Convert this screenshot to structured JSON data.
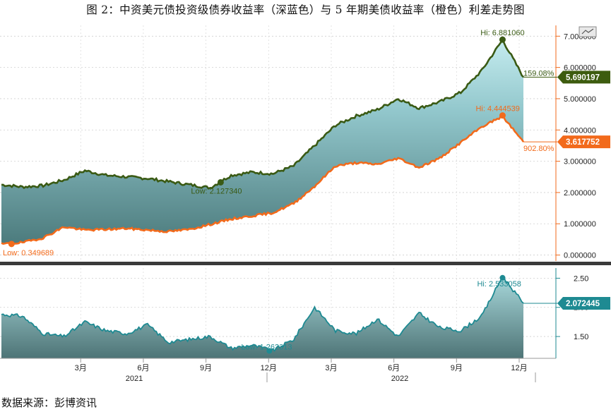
{
  "title": "图 2：中资美元债投资级债券收益率（深蓝色）与 5 年期美债收益率（橙色）利差走势图",
  "source": "数据来源：彭博资讯",
  "colors": {
    "ig_yield": "#3a5a14",
    "ust5y": "#f26a1b",
    "spread": "#1e8a92",
    "tag_ig": "#3d5c0f",
    "tag_ust": "#f26a1b",
    "tag_spread": "#1e8a92"
  },
  "widget_icon": "chart-settings-icon",
  "chart_data": [
    {
      "type": "area",
      "x": [
        "2020-11",
        "2020-12",
        "2021-01",
        "2021-02",
        "2021-03",
        "2021-04",
        "2021-05",
        "2021-06",
        "2021-07",
        "2021-08",
        "2021-09",
        "2021-10",
        "2021-11",
        "2021-12",
        "2022-01",
        "2022-02",
        "2022-03",
        "2022-04",
        "2022-05",
        "2022-06",
        "2022-07",
        "2022-08",
        "2022-09",
        "2022-10",
        "2022-11",
        "2022-12"
      ],
      "series": [
        {
          "key": "ig",
          "values": [
            2.25,
            2.18,
            2.22,
            2.4,
            2.7,
            2.55,
            2.5,
            2.45,
            2.35,
            2.25,
            2.15,
            2.55,
            2.65,
            2.6,
            2.85,
            3.5,
            4.15,
            4.45,
            4.65,
            5.0,
            4.7,
            4.9,
            5.2,
            5.9,
            6.88,
            5.69
          ]
        },
        {
          "key": "ust",
          "values": [
            0.35,
            0.4,
            0.55,
            0.9,
            0.8,
            0.82,
            0.85,
            0.8,
            0.75,
            0.82,
            0.98,
            1.15,
            1.25,
            1.35,
            1.65,
            2.2,
            2.85,
            2.95,
            2.9,
            3.1,
            2.8,
            3.1,
            3.6,
            4.1,
            4.44,
            3.62
          ]
        }
      ],
      "yticks": [
        "7.000000",
        "6.000000",
        "5.000000",
        "4.000000",
        "3.000000",
        "2.000000",
        "1.000000",
        "0.000000"
      ],
      "ylim": [
        -0.1,
        7.3
      ],
      "annotations": {
        "ig_hi": "Hi: 6.881060",
        "ig_low": "Low: 2.127340",
        "ust_hi": "Hi: 4.444539",
        "ust_low": "Low: 0.349689",
        "ig_change": "159.08%",
        "ust_change": "902.80%",
        "ig_last": "5.690197",
        "ust_last": "3.617752"
      }
    },
    {
      "type": "area",
      "series": [
        {
          "key": "spread",
          "values": [
            1.88,
            1.85,
            1.55,
            1.5,
            1.75,
            1.6,
            1.55,
            1.7,
            1.4,
            1.45,
            1.5,
            1.3,
            1.35,
            1.26,
            1.45,
            2.0,
            1.6,
            1.55,
            1.8,
            1.5,
            1.9,
            1.65,
            1.6,
            1.85,
            2.53,
            2.07
          ]
        }
      ],
      "yticks": [
        "2.50",
        "2.00",
        "1.50"
      ],
      "ylim": [
        1.15,
        2.65
      ],
      "annotations": {
        "hi": "Hi: 2.533058",
        "low": "Low: 1.262313",
        "last": "2.072445"
      }
    }
  ],
  "x_axis": {
    "months": [
      "3月",
      "6月",
      "9月",
      "12月",
      "3月",
      "6月",
      "9月",
      "12月"
    ],
    "years": [
      "2021",
      "2022"
    ]
  }
}
